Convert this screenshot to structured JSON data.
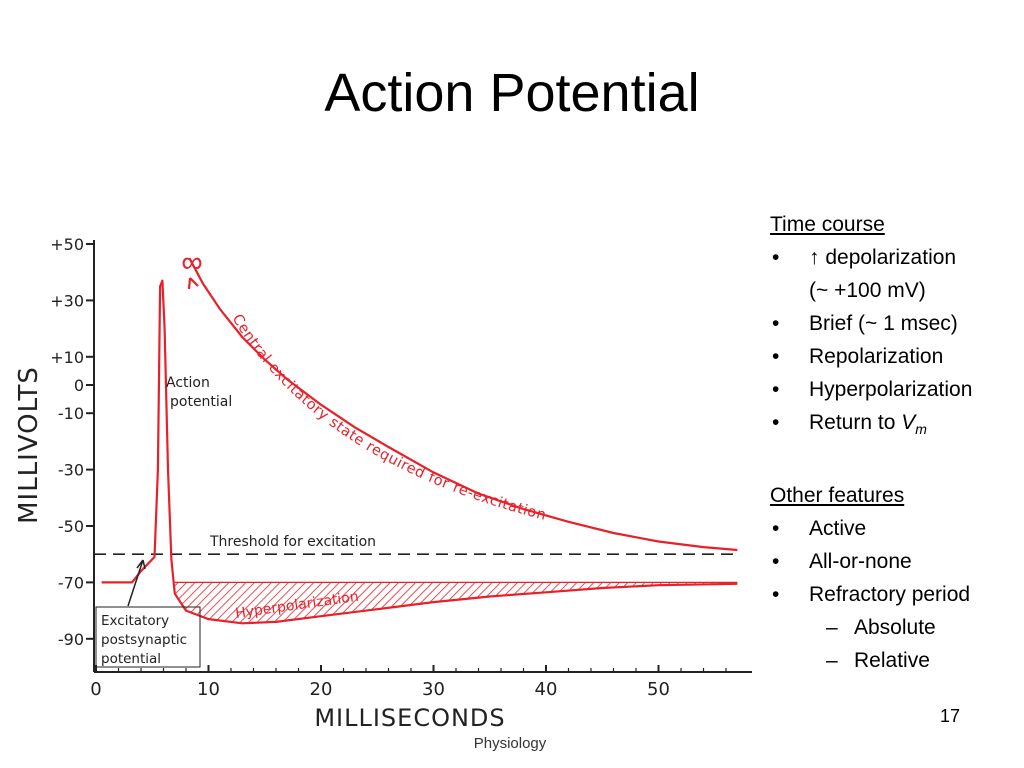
{
  "slide": {
    "title": "Action Potential",
    "page_number": "17",
    "footer": "Physiology"
  },
  "notes": {
    "section1_heading": "Time course",
    "bullet1_line1": "↑  depolarization",
    "bullet1_line2": "(~ +100 mV)",
    "bullet2": "Brief (~ 1 msec)",
    "bullet3": "Repolarization",
    "bullet4": "Hyperpolarization",
    "bullet5_prefix": "Return to ",
    "bullet5_var": "V",
    "bullet5_sub": "m",
    "section2_heading": "Other features",
    "bullet6": "Active",
    "bullet7": "All-or-none",
    "bullet8": "Refractory period",
    "sub1": "Absolute",
    "sub2": "Relative"
  },
  "chart_data": {
    "type": "line",
    "xlabel": "MILLISECONDS",
    "ylabel": "MILLIVOLTS",
    "xlim": [
      0,
      57
    ],
    "ylim": [
      -97,
      54
    ],
    "x_ticks": [
      0,
      10,
      20,
      30,
      40,
      50
    ],
    "y_ticks": [
      {
        "value": 50,
        "label": "+50"
      },
      {
        "value": 30,
        "label": "+30"
      },
      {
        "value": 10,
        "label": "+10"
      },
      {
        "value": 0,
        "label": "0"
      },
      {
        "value": -10,
        "label": "-10"
      },
      {
        "value": -30,
        "label": "-30"
      },
      {
        "value": -50,
        "label": "-50"
      },
      {
        "value": -70,
        "label": "-70"
      },
      {
        "value": -90,
        "label": "-90"
      }
    ],
    "threshold": -60,
    "colors": {
      "trace": "#e8202a",
      "axis": "#222222"
    },
    "series": [
      {
        "key": "membrane",
        "points": [
          [
            0.5,
            -70
          ],
          [
            3.2,
            -70
          ],
          [
            4,
            -66
          ],
          [
            4.7,
            -63
          ],
          [
            5.2,
            -61
          ],
          [
            5.5,
            -30
          ],
          [
            5.7,
            35
          ],
          [
            5.9,
            37
          ],
          [
            6.1,
            20
          ],
          [
            6.4,
            -30
          ],
          [
            6.7,
            -62
          ],
          [
            7,
            -74
          ],
          [
            8,
            -80
          ],
          [
            10,
            -83
          ],
          [
            13,
            -84.5
          ],
          [
            16,
            -84
          ],
          [
            20,
            -82
          ],
          [
            25,
            -79.5
          ],
          [
            30,
            -77
          ],
          [
            35,
            -75
          ],
          [
            40,
            -73.5
          ],
          [
            45,
            -72
          ],
          [
            50,
            -71
          ],
          [
            57,
            -70.5
          ]
        ]
      },
      {
        "key": "excitatory_state",
        "points": [
          [
            8.3,
            45
          ],
          [
            9.5,
            36
          ],
          [
            11,
            27
          ],
          [
            13,
            17
          ],
          [
            15,
            9
          ],
          [
            17,
            2
          ],
          [
            20,
            -7
          ],
          [
            23,
            -15
          ],
          [
            26,
            -22
          ],
          [
            30,
            -31
          ],
          [
            34,
            -38.5
          ],
          [
            38,
            -44
          ],
          [
            42,
            -48.5
          ],
          [
            46,
            -52.5
          ],
          [
            50,
            -55.5
          ],
          [
            54,
            -57.5
          ],
          [
            57,
            -58.5
          ]
        ]
      }
    ],
    "shading": {
      "label": "Hyperpolarization",
      "from_x": 7,
      "to_x": 57,
      "upper": -70
    },
    "annotations": {
      "action_potential": "Action potential",
      "epsp": "Excitatory postsynaptic potential",
      "threshold": "Threshold for excitation",
      "excitatory_state": "Central excitatory state required for re-excitation",
      "infinity": "∞"
    }
  }
}
